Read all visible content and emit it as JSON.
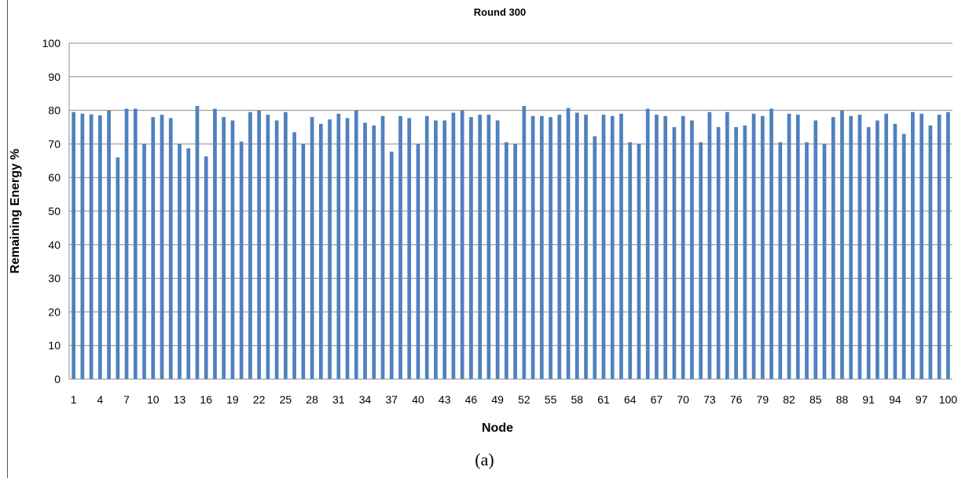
{
  "caption": "(a)",
  "colors": {
    "bar": "#4f81bd",
    "grid": "#8c8c8c",
    "axis": "#8c8c8c"
  },
  "chart_data": {
    "type": "bar",
    "title": "Round 300",
    "xlabel": "Node",
    "ylabel": "Remaining Energy %",
    "ylim": [
      0,
      100
    ],
    "yticks": [
      0,
      10,
      20,
      30,
      40,
      50,
      60,
      70,
      80,
      90,
      100
    ],
    "xtick_labels": [
      "1",
      "4",
      "7",
      "10",
      "13",
      "16",
      "19",
      "22",
      "25",
      "28",
      "31",
      "34",
      "37",
      "40",
      "43",
      "46",
      "49",
      "52",
      "55",
      "58",
      "61",
      "64",
      "67",
      "70",
      "73",
      "76",
      "79",
      "82",
      "85",
      "88",
      "91",
      "94",
      "97",
      "100"
    ],
    "grid": true,
    "legend": "none",
    "categories": [
      1,
      2,
      3,
      4,
      5,
      6,
      7,
      8,
      9,
      10,
      11,
      12,
      13,
      14,
      15,
      16,
      17,
      18,
      19,
      20,
      21,
      22,
      23,
      24,
      25,
      26,
      27,
      28,
      29,
      30,
      31,
      32,
      33,
      34,
      35,
      36,
      37,
      38,
      39,
      40,
      41,
      42,
      43,
      44,
      45,
      46,
      47,
      48,
      49,
      50,
      51,
      52,
      53,
      54,
      55,
      56,
      57,
      58,
      59,
      60,
      61,
      62,
      63,
      64,
      65,
      66,
      67,
      68,
      69,
      70,
      71,
      72,
      73,
      74,
      75,
      76,
      77,
      78,
      79,
      80,
      81,
      82,
      83,
      84,
      85,
      86,
      87,
      88,
      89,
      90,
      91,
      92,
      93,
      94,
      95,
      96,
      97,
      98,
      99,
      100
    ],
    "values": [
      79.5,
      79,
      78.8,
      78.5,
      80,
      66,
      80.5,
      80.5,
      70,
      78,
      78.7,
      77.7,
      70,
      68.7,
      81.3,
      66.3,
      80.5,
      78,
      77,
      70.7,
      79.5,
      80,
      78.7,
      77,
      79.5,
      73.5,
      70,
      78,
      76,
      77.3,
      79,
      77.7,
      80,
      76.3,
      75.5,
      78.3,
      67.7,
      78.3,
      77.7,
      70,
      78.3,
      77,
      77,
      79.3,
      80,
      78,
      78.7,
      78.7,
      77,
      70.5,
      70,
      81.3,
      78.3,
      78.3,
      78,
      78.7,
      80.7,
      79.3,
      78.7,
      72.3,
      78.7,
      78.3,
      79,
      70.5,
      70,
      80.5,
      78.7,
      78.3,
      75,
      78.3,
      77,
      70.5,
      79.5,
      75,
      79.5,
      75,
      75.5,
      79,
      78.3,
      80.5,
      70.5,
      79,
      78.7,
      70.5,
      77,
      70,
      78,
      80,
      78.3,
      78.7,
      75,
      77,
      79,
      76,
      73,
      79.5,
      79,
      75.5,
      78.7,
      79.5
    ]
  }
}
